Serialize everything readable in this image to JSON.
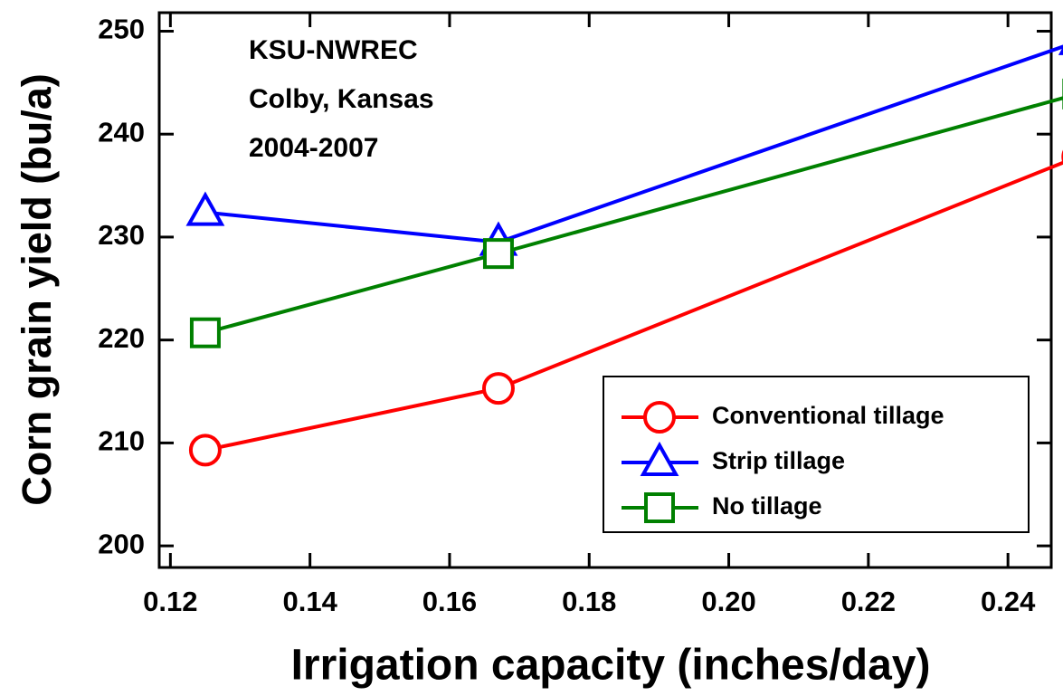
{
  "chart_data": {
    "type": "line",
    "x_label": "Irrigation capacity (inches/day)",
    "y_label": "Corn grain yield (bu/a)",
    "annotations": [
      "KSU-NWREC",
      "Colby, Kansas",
      "2004-2007"
    ],
    "x": [
      0.125,
      0.167,
      0.25
    ],
    "series": [
      {
        "name": "Conventional tillage",
        "color": "#ff0000",
        "marker": "circle",
        "values": [
          209.3,
          215.3,
          237.8
        ]
      },
      {
        "name": "Strip tillage",
        "color": "#0000ff",
        "marker": "triangle",
        "values": [
          232.4,
          229.5,
          249.0
        ]
      },
      {
        "name": "No tillage",
        "color": "#008000",
        "marker": "square",
        "values": [
          220.7,
          228.4,
          243.9
        ]
      }
    ],
    "xlim": [
      0.1184,
      0.2462
    ],
    "ylim": [
      197.9,
      251.8
    ],
    "xticks": [
      0.12,
      0.14,
      0.16,
      0.18,
      {
        "value": 0.2,
        "label": "0.20"
      },
      0.22,
      0.24
    ],
    "yticks": [
      200,
      210,
      220,
      230,
      240,
      250
    ],
    "legend_position": "lower right"
  }
}
